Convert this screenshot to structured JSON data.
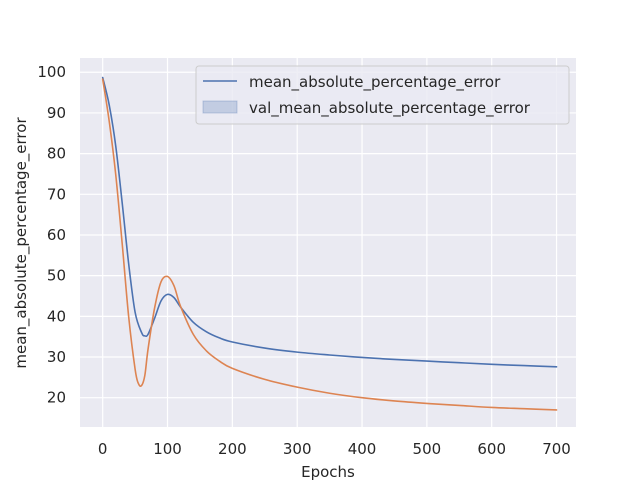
{
  "chart_data": {
    "type": "line",
    "title": "",
    "xlabel": "Epochs",
    "ylabel": "mean_absolute_percentage_error",
    "xlim": [
      -35,
      730
    ],
    "ylim": [
      12.8,
      103.5
    ],
    "xticks": [
      0,
      100,
      200,
      300,
      400,
      500,
      600,
      700
    ],
    "yticks": [
      20,
      30,
      40,
      50,
      60,
      70,
      80,
      90,
      100
    ],
    "grid": true,
    "legend_position": "top-right",
    "legend": [
      "mean_absolute_percentage_error",
      "val_mean_absolute_percentage_error"
    ],
    "series": [
      {
        "name": "mean_absolute_percentage_error",
        "color": "#4c72b0",
        "x": [
          0,
          10,
          20,
          30,
          40,
          50,
          60,
          65,
          70,
          80,
          90,
          100,
          110,
          120,
          140,
          160,
          180,
          200,
          250,
          300,
          350,
          400,
          450,
          500,
          550,
          600,
          650,
          700
        ],
        "y": [
          98.7,
          92,
          82,
          68,
          53,
          41,
          36,
          35.2,
          35.6,
          39.5,
          43.8,
          45.4,
          44.6,
          42.3,
          38.5,
          36.2,
          34.7,
          33.7,
          32.2,
          31.2,
          30.5,
          29.9,
          29.4,
          29.0,
          28.6,
          28.2,
          27.9,
          27.6
        ]
      },
      {
        "name": "val_mean_absolute_percentage_error",
        "color": "#dd8452",
        "x": [
          0,
          10,
          20,
          30,
          40,
          50,
          55,
          60,
          65,
          70,
          80,
          90,
          100,
          110,
          120,
          140,
          160,
          180,
          200,
          250,
          300,
          350,
          400,
          450,
          500,
          550,
          600,
          650,
          700
        ],
        "y": [
          98.3,
          88,
          75,
          58,
          40,
          27,
          23.5,
          23,
          25.5,
          32,
          42,
          48.5,
          49.8,
          47.5,
          42.5,
          35.5,
          31.5,
          29,
          27.2,
          24.5,
          22.6,
          21.1,
          20.0,
          19.2,
          18.6,
          18.1,
          17.6,
          17.3,
          17.0
        ]
      }
    ]
  }
}
